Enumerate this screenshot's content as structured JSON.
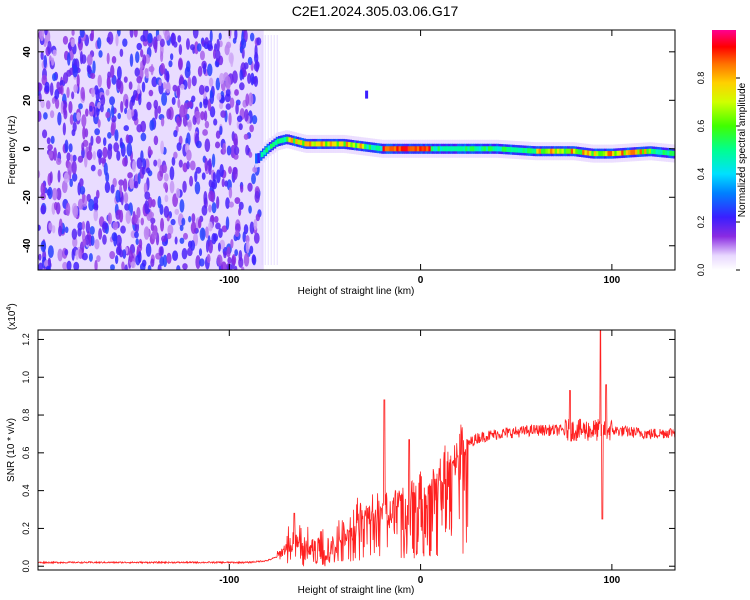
{
  "title": "C2E1.2024.305.03.06.G17",
  "chart_data": [
    {
      "type": "heatmap",
      "xlabel": "Height of straight line (km)",
      "ylabel": "Frequency (Hz)",
      "xlim": [
        -200,
        133
      ],
      "ylim": [
        -50,
        49
      ],
      "xticks": [
        -100,
        0,
        100
      ],
      "yticks": [
        -40,
        -20,
        0,
        20,
        40
      ],
      "colorbar": {
        "label": "Normalized spectral amplitude",
        "range": [
          0,
          1
        ],
        "ticks": [
          "0.0",
          "0.2",
          "0.4",
          "0.6",
          "0.8"
        ]
      },
      "features": {
        "noise_region_x": [
          -200,
          -82
        ],
        "signal_track": {
          "x": [
            -85,
            -80,
            -75,
            -70,
            -60,
            -50,
            -40,
            -30,
            -20,
            -10,
            0,
            20,
            40,
            60,
            80,
            90,
            100,
            120,
            133
          ],
          "freq": [
            -4,
            0,
            3,
            4,
            2,
            2,
            2,
            1,
            0,
            0,
            0,
            0,
            0,
            -1,
            -1,
            -2,
            -2,
            -1,
            -2
          ]
        }
      }
    },
    {
      "type": "line",
      "series_color": "#ff2020",
      "xlabel": "Height of straight line (km)",
      "ylabel": "SNR (10 * v/v)",
      "scale_label": "(x10",
      "scale_exp": "4",
      "xlim": [
        -200,
        133
      ],
      "ylim": [
        -0.02,
        1.25
      ],
      "xticks": [
        -100,
        0,
        100
      ],
      "yticks": [
        "0.0",
        "0.2",
        "0.4",
        "0.6",
        "0.8",
        "1.0",
        "1.2"
      ],
      "envelope": {
        "x": [
          -200,
          -90,
          -80,
          -75,
          -70,
          -65,
          -60,
          -50,
          -40,
          -30,
          -20,
          -10,
          0,
          10,
          20,
          30,
          40,
          60,
          80,
          100,
          120,
          133
        ],
        "y": [
          0.02,
          0.02,
          0.03,
          0.05,
          0.1,
          0.15,
          0.12,
          0.08,
          0.16,
          0.28,
          0.32,
          0.38,
          0.42,
          0.52,
          0.62,
          0.68,
          0.7,
          0.72,
          0.72,
          0.72,
          0.7,
          0.71
        ]
      },
      "spikes": [
        {
          "x": -66,
          "y": 0.28
        },
        {
          "x": -19,
          "y": 0.88
        },
        {
          "x": -6,
          "y": 0.67
        },
        {
          "x": 78,
          "y": 0.93
        },
        {
          "x": 94,
          "y": 1.25
        },
        {
          "x": 95,
          "y": 0.25
        },
        {
          "x": 97,
          "y": 0.96
        }
      ]
    }
  ]
}
